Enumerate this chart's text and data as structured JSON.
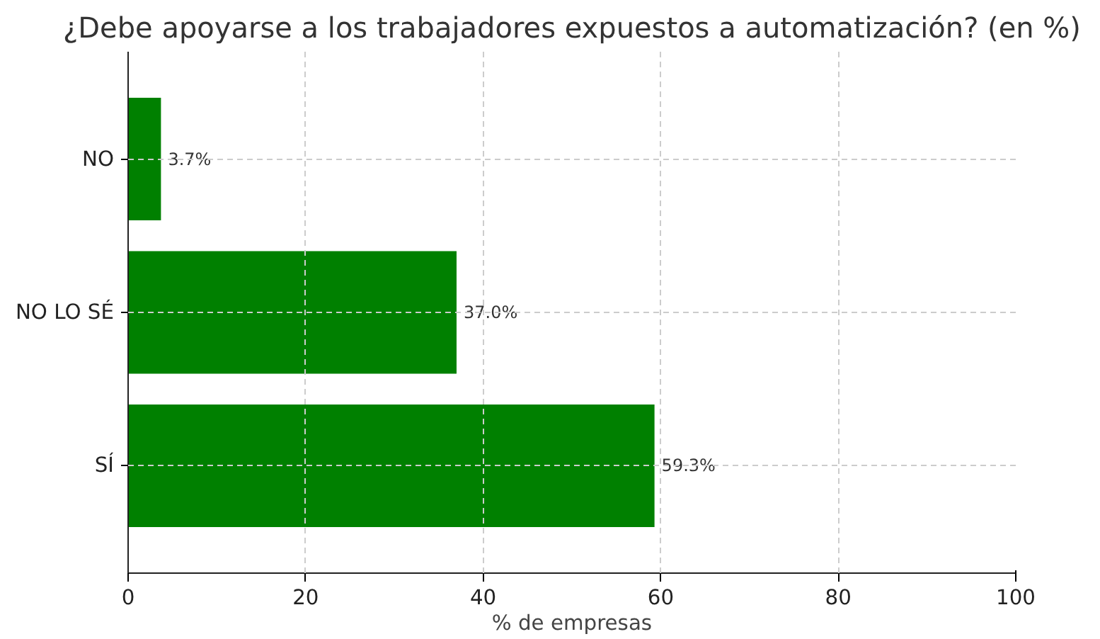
{
  "chart_data": {
    "type": "bar",
    "orientation": "horizontal",
    "title": "¿Debe apoyarse a los trabajadores expuestos a automatización? (en %)",
    "xlabel": "% de empresas",
    "categories": [
      "NO",
      "NO LO SÉ",
      "SÍ"
    ],
    "values": [
      3.7,
      37.0,
      59.3
    ],
    "value_labels": [
      "3.7%",
      "37.0%",
      "59.3%"
    ],
    "color": "#008000",
    "xlim": [
      0,
      100
    ],
    "xticks": [
      0,
      20,
      40,
      60,
      80,
      100
    ],
    "grid": true,
    "line_style": "dashed"
  }
}
